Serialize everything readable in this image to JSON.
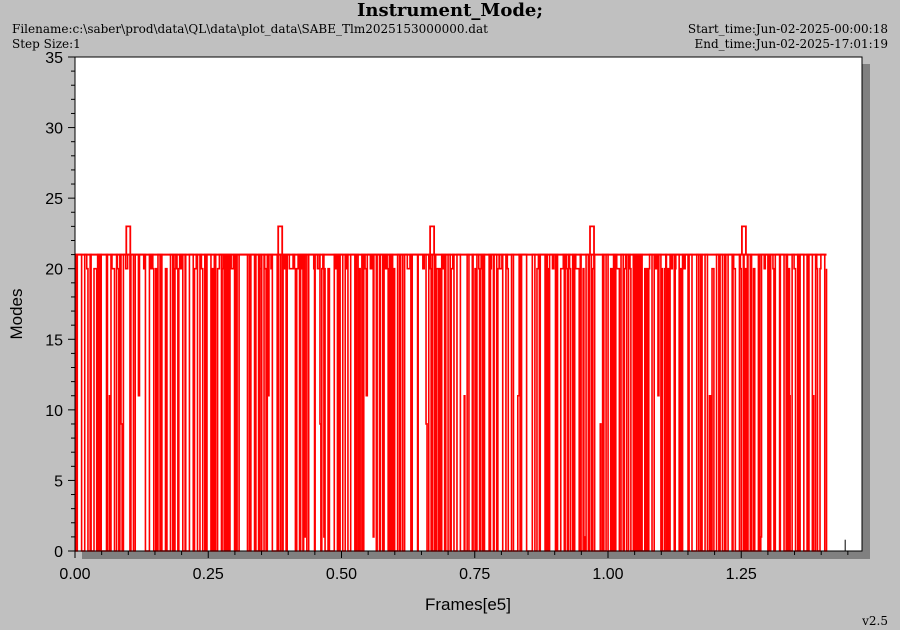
{
  "header": {
    "title": "Instrument_Mode;",
    "filename": "Filename:c:\\saber\\prod\\data\\QL\\data\\plot_data\\SABE_Tlm2025153000000.dat",
    "step_size": "Step Size:1",
    "start_time": "Start_time:Jun-02-2025-00:00:18",
    "end_time": "End_time:Jun-02-2025-17:01:19"
  },
  "version": "v2.5",
  "colors": {
    "series": "#ff0000",
    "background": "#c0c0c0",
    "plot_area": "#ffffff",
    "shadow": "#808080"
  },
  "chart_data": {
    "type": "line",
    "title": "Instrument_Mode;",
    "xlabel": "Frames[e5]",
    "ylabel": "Modes",
    "xlim": [
      0.0,
      1.47
    ],
    "ylim": [
      0,
      35
    ],
    "x_ticks": [
      "0.00",
      "0.25",
      "0.50",
      "0.75",
      "1.00",
      "1.25"
    ],
    "x_tick_values": [
      0.0,
      0.25,
      0.5,
      0.75,
      1.0,
      1.25
    ],
    "y_ticks": [
      "0",
      "5",
      "10",
      "15",
      "20",
      "25",
      "30",
      "35"
    ],
    "y_tick_values": [
      0,
      5,
      10,
      15,
      20,
      25,
      30,
      35
    ],
    "grid": false,
    "series": [
      {
        "baseline_level": 21,
        "dominant_levels": [
          0,
          20,
          21
        ],
        "occasional_levels": [
          11,
          9,
          1
        ],
        "x_start": 0.0,
        "x_end": 1.41,
        "end_value": 20,
        "spike_level": 23,
        "spike_x": [
          0.1,
          0.385,
          0.67,
          0.97,
          1.255
        ],
        "isolated_point": {
          "x": 1.445,
          "y_from": 0,
          "y_to": 0.8
        }
      }
    ]
  }
}
